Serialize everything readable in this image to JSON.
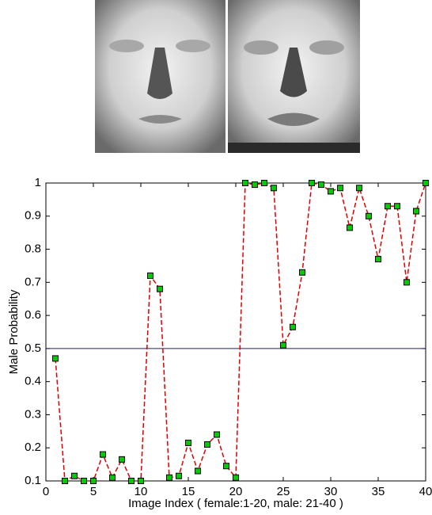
{
  "chart_data": {
    "type": "line",
    "x_label": "Image Index ( female:1-20, male: 21-40 )",
    "y_label": "Male Probability",
    "x": [
      1,
      2,
      3,
      4,
      5,
      6,
      7,
      8,
      9,
      10,
      11,
      12,
      13,
      14,
      15,
      16,
      17,
      18,
      19,
      20,
      21,
      22,
      23,
      24,
      25,
      26,
      27,
      28,
      29,
      30,
      31,
      32,
      33,
      34,
      35,
      36,
      37,
      38,
      39,
      40
    ],
    "series": [
      {
        "color": "#e00000",
        "marker_color": "#00cc00",
        "values": [
          0.47,
          0.1,
          0.115,
          0.1,
          0.1,
          0.18,
          0.11,
          0.165,
          0.1,
          0.1,
          0.72,
          0.68,
          0.11,
          0.115,
          0.215,
          0.13,
          0.21,
          0.24,
          0.145,
          0.11,
          1.0,
          0.995,
          1.0,
          0.985,
          0.51,
          0.565,
          0.73,
          1.0,
          0.995,
          0.975,
          0.985,
          0.865,
          0.985,
          0.9,
          0.77,
          0.93,
          0.93,
          0.7,
          0.915,
          1.0
        ]
      }
    ],
    "threshold": {
      "value": 0.5,
      "color": "#1a1a8c"
    },
    "xlim": [
      0,
      40
    ],
    "xticks": [
      0,
      5,
      10,
      15,
      20,
      25,
      30,
      35,
      40
    ],
    "ylim": [
      0.1,
      1
    ],
    "yticks": [
      0.1,
      0.2,
      0.3,
      0.4,
      0.5,
      0.6,
      0.7,
      0.8,
      0.9,
      1
    ]
  }
}
